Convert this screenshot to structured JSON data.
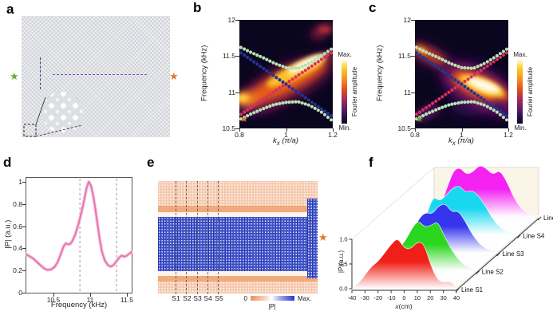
{
  "icons": {
    "star": "★"
  },
  "colors": {
    "star_green": "#6faa2e",
    "star_orange": "#e8762c",
    "dots_green": "#b9dfb4",
    "dots_navy": "#273390",
    "dots_red": "#d8325a",
    "curve_pink": "#e87ab2",
    "field_positive_salmon": "#f5c7ab",
    "field_negative_blue": "#4055cc"
  },
  "panels": {
    "a": {
      "label": "a"
    },
    "b": {
      "label": "b",
      "ylabel": "Frequency (kHz)",
      "xlabel_k": "k",
      "xlabel_sub": "x",
      "xlabel_unit": " (π/a)",
      "colorbar_max": "Max.",
      "colorbar_min": "Min.",
      "colorbar_label": "Fourier amplitude"
    },
    "c": {
      "label": "c",
      "ylabel": "Frequency (kHz)",
      "xlabel_k": "k",
      "xlabel_sub": "x",
      "xlabel_unit": " (π/a)",
      "colorbar_max": "Max.",
      "colorbar_min": "Min.",
      "colorbar_label": "Fourier amplitude"
    },
    "d": {
      "label": "d",
      "ylabel": "|P| (a.u.)",
      "xlabel": "Frequency (kHz)"
    },
    "e": {
      "label": "e",
      "colorbar_zero": "0",
      "colorbar_max": "Max.",
      "colorbar_label": "|P|"
    },
    "f": {
      "label": "f",
      "ylabel": "|P|(a.u.)",
      "xlabel_x": "x",
      "xlabel_unit": "(cm)"
    }
  },
  "chart_data": [
    {
      "id": "b",
      "type": "heatmap",
      "title": "",
      "xlabel": "k_x (π/a)",
      "ylabel": "Frequency (kHz)",
      "xlim": [
        0.8,
        1.2
      ],
      "ylim": [
        10.5,
        12
      ],
      "xticks": [
        0.8,
        1,
        1.2
      ],
      "xtick_labels": [
        "0.8",
        "1",
        "1.2"
      ],
      "yticks": [
        10.5,
        11,
        11.5,
        12
      ],
      "ytick_labels": [
        "10.5",
        "11",
        "11.5",
        "12"
      ],
      "colorbar": {
        "max": "Max.",
        "min": "Min.",
        "label": "Fourier amplitude"
      },
      "bright_feature": "high Fourier amplitude band along the ascending branch from (0.85,10.9) to (1.2,11.55); brightest near kx 1.05-1.17, f 11.3-11.5; faint blob near (1.15,11.85)",
      "star": {
        "kx": 0.83,
        "f": 10.54,
        "color": "#e8762c"
      },
      "series": [
        {
          "name": "upper-green-branch",
          "color": "#b9dfb4",
          "points": [
            [
              0.8,
              11.63
            ],
            [
              0.85,
              11.55
            ],
            [
              0.9,
              11.48
            ],
            [
              0.95,
              11.4
            ],
            [
              1.0,
              11.34
            ],
            [
              1.05,
              11.33
            ],
            [
              1.1,
              11.4
            ],
            [
              1.15,
              11.5
            ],
            [
              1.2,
              11.61
            ]
          ]
        },
        {
          "name": "lower-green-branch",
          "color": "#b9dfb4",
          "points": [
            [
              0.8,
              10.62
            ],
            [
              0.85,
              10.7
            ],
            [
              0.9,
              10.77
            ],
            [
              0.95,
              10.83
            ],
            [
              1.0,
              10.86
            ],
            [
              1.05,
              10.87
            ],
            [
              1.1,
              10.82
            ],
            [
              1.15,
              10.73
            ],
            [
              1.2,
              10.6
            ]
          ]
        },
        {
          "name": "red-ascending-mode",
          "color": "#d8325a",
          "points": [
            [
              0.8,
              10.68
            ],
            [
              1.2,
              11.56
            ]
          ]
        },
        {
          "name": "navy-descending-mode",
          "color": "#273390",
          "points": [
            [
              0.8,
              11.56
            ],
            [
              1.2,
              10.66
            ]
          ]
        }
      ]
    },
    {
      "id": "c",
      "type": "heatmap",
      "title": "",
      "xlabel": "k_x (π/a)",
      "ylabel": "Frequency (kHz)",
      "xlim": [
        0.8,
        1.2
      ],
      "ylim": [
        10.5,
        12
      ],
      "xticks": [
        0.8,
        1,
        1.2
      ],
      "xtick_labels": [
        "0.8",
        "1",
        "1.2"
      ],
      "yticks": [
        10.5,
        11,
        11.5,
        12
      ],
      "ytick_labels": [
        "10.5",
        "11",
        "11.5",
        "12"
      ],
      "colorbar": {
        "max": "Max.",
        "min": "Min.",
        "label": "Fourier amplitude"
      },
      "bright_feature": "localized bright spot near (1.08,11.05) elongated along the descending branch; orange streak upper-left (0.8-0.95, 11.6-11.35); purple streak lower-left along ascending branch",
      "star": {
        "kx": 0.83,
        "f": 10.54,
        "color": "#6faa2e"
      },
      "series": [
        {
          "name": "upper-green-branch",
          "color": "#b9dfb4",
          "points": [
            [
              0.8,
              11.63
            ],
            [
              0.85,
              11.55
            ],
            [
              0.9,
              11.48
            ],
            [
              0.95,
              11.4
            ],
            [
              1.0,
              11.34
            ],
            [
              1.05,
              11.33
            ],
            [
              1.1,
              11.4
            ],
            [
              1.15,
              11.5
            ],
            [
              1.2,
              11.61
            ]
          ]
        },
        {
          "name": "lower-green-branch",
          "color": "#b9dfb4",
          "points": [
            [
              0.8,
              10.62
            ],
            [
              0.85,
              10.7
            ],
            [
              0.9,
              10.77
            ],
            [
              0.95,
              10.83
            ],
            [
              1.0,
              10.86
            ],
            [
              1.05,
              10.87
            ],
            [
              1.1,
              10.82
            ],
            [
              1.15,
              10.73
            ],
            [
              1.2,
              10.6
            ]
          ]
        },
        {
          "name": "red-ascending-mode",
          "color": "#d8325a",
          "points": [
            [
              0.8,
              10.68
            ],
            [
              1.2,
              11.56
            ]
          ]
        },
        {
          "name": "navy-descending-mode",
          "color": "#273390",
          "points": [
            [
              0.8,
              11.56
            ],
            [
              1.2,
              10.66
            ]
          ]
        }
      ]
    },
    {
      "id": "d",
      "type": "line",
      "title": "",
      "xlabel": "Frequency (kHz)",
      "ylabel": "|P| (a.u.)",
      "xlim": [
        10.12,
        11.57
      ],
      "ylim": [
        0,
        1.05
      ],
      "xticks": [
        10.5,
        11,
        11.5
      ],
      "xtick_labels": [
        "10.5",
        "11",
        "11.5"
      ],
      "yticks": [
        0,
        0.2,
        0.4,
        0.6,
        0.8,
        1
      ],
      "ytick_labels": [
        "0",
        "0.2",
        "0.4",
        "0.6",
        "0.8",
        "1"
      ],
      "dashed_lines_x": [
        10.86,
        11.36
      ],
      "color": "#e87ab2",
      "points": [
        [
          10.12,
          0.35
        ],
        [
          10.17,
          0.33
        ],
        [
          10.22,
          0.31
        ],
        [
          10.27,
          0.28
        ],
        [
          10.32,
          0.25
        ],
        [
          10.37,
          0.22
        ],
        [
          10.42,
          0.205
        ],
        [
          10.47,
          0.21
        ],
        [
          10.52,
          0.235
        ],
        [
          10.56,
          0.28
        ],
        [
          10.6,
          0.35
        ],
        [
          10.64,
          0.42
        ],
        [
          10.67,
          0.445
        ],
        [
          10.7,
          0.435
        ],
        [
          10.73,
          0.44
        ],
        [
          10.76,
          0.47
        ],
        [
          10.8,
          0.53
        ],
        [
          10.84,
          0.62
        ],
        [
          10.88,
          0.72
        ],
        [
          10.92,
          0.84
        ],
        [
          10.95,
          0.94
        ],
        [
          10.98,
          1.0
        ],
        [
          11.01,
          0.97
        ],
        [
          11.04,
          0.88
        ],
        [
          11.07,
          0.76
        ],
        [
          11.1,
          0.62
        ],
        [
          11.13,
          0.48
        ],
        [
          11.16,
          0.37
        ],
        [
          11.2,
          0.29
        ],
        [
          11.24,
          0.25
        ],
        [
          11.28,
          0.235
        ],
        [
          11.32,
          0.25
        ],
        [
          11.36,
          0.285
        ],
        [
          11.4,
          0.32
        ],
        [
          11.43,
          0.335
        ],
        [
          11.46,
          0.325
        ],
        [
          11.49,
          0.33
        ],
        [
          11.52,
          0.345
        ],
        [
          11.57,
          0.37
        ]
      ]
    },
    {
      "id": "e",
      "type": "heatmap",
      "title": "",
      "colorbar": {
        "min": "0",
        "max": "Max.",
        "label": "|P|"
      },
      "section_labels": [
        "S1",
        "S2",
        "S3",
        "S4",
        "S5"
      ],
      "description": "pressure-field map |P|: high amplitude (blue) confined along the central waveguide row, widening at the right-hand source (orange star); low amplitude (salmon) in the bulk; five dashed sampling sections S1-S5"
    },
    {
      "id": "f",
      "type": "area",
      "title": "",
      "xlabel": "x(cm)",
      "ylabel": "|P|(a.u.)",
      "xlim": [
        -40,
        40
      ],
      "zlim": [
        0,
        1
      ],
      "xticks": [
        -40,
        -30,
        -20,
        -10,
        0,
        10,
        20,
        30,
        40
      ],
      "xtick_labels": [
        "-40",
        "-30",
        "-20",
        "-10",
        "0",
        "10",
        "20",
        "30",
        "40"
      ],
      "ztick_labels": [
        "0.0",
        "0.5",
        "1.0"
      ],
      "x": [
        -40,
        -35,
        -30,
        -25,
        -20,
        -15,
        -10,
        -5,
        0,
        5,
        10,
        15,
        20,
        25,
        30,
        35,
        40
      ],
      "series": [
        {
          "name": "Line S1",
          "color": "#f02018",
          "values": [
            0.02,
            0.1,
            0.28,
            0.45,
            0.55,
            0.72,
            0.9,
            1.03,
            0.82,
            0.8,
            0.95,
            0.92,
            0.5,
            0.2,
            0.12,
            0.16,
            0.04
          ]
        },
        {
          "name": "Line S2",
          "color": "#2ad61e",
          "values": [
            0.02,
            0.06,
            0.12,
            0.3,
            0.45,
            0.6,
            0.85,
            1.02,
            0.88,
            0.92,
            1.0,
            0.7,
            0.45,
            0.25,
            0.12,
            0.06,
            0.02
          ]
        },
        {
          "name": "Line S3",
          "color": "#3535ee",
          "values": [
            0.02,
            0.08,
            0.2,
            0.42,
            0.7,
            0.82,
            0.78,
            0.95,
            1.0,
            0.82,
            0.85,
            0.65,
            0.4,
            0.22,
            0.1,
            0.05,
            0.02
          ]
        },
        {
          "name": "Line S4",
          "color": "#18d8f0",
          "values": [
            0.03,
            0.15,
            0.4,
            0.78,
            0.68,
            0.8,
            0.95,
            1.0,
            0.85,
            0.9,
            0.78,
            0.58,
            0.35,
            0.18,
            0.08,
            0.04,
            0.02
          ]
        },
        {
          "name": "Line S5",
          "color": "#f322f3",
          "values": [
            0.03,
            0.25,
            0.6,
            0.95,
            1.0,
            0.85,
            0.92,
            1.05,
            0.98,
            0.85,
            0.95,
            0.75,
            0.45,
            0.22,
            0.1,
            0.05,
            0.02
          ]
        }
      ]
    }
  ]
}
